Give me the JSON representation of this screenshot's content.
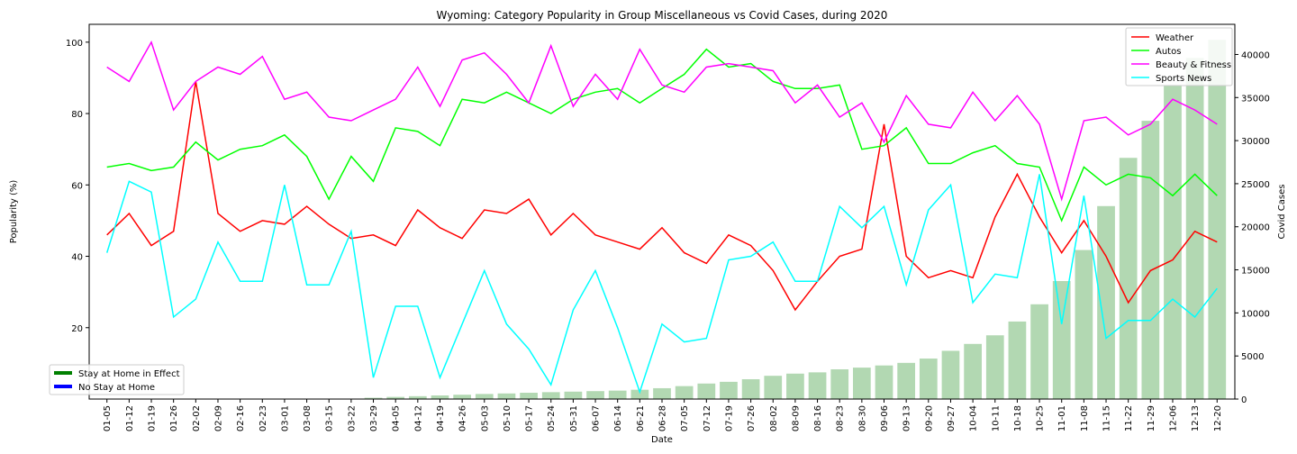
{
  "chart_data": {
    "type": "line",
    "title": "Wyoming: Category Popularity in Group Miscellaneous vs Covid Cases, during 2020",
    "xlabel": "Date",
    "ylabel": "Popularity (%)",
    "y2label": "Covid Cases",
    "ylim": [
      0,
      105
    ],
    "y2lim": [
      0,
      43500
    ],
    "yticks": [
      "20",
      "40",
      "60",
      "80",
      "100"
    ],
    "y2ticks": [
      "0",
      "5000",
      "10000",
      "15000",
      "20000",
      "25000",
      "30000",
      "35000",
      "40000"
    ],
    "categories": [
      "01-05",
      "01-12",
      "01-19",
      "01-26",
      "02-02",
      "02-09",
      "02-16",
      "02-23",
      "03-01",
      "03-08",
      "03-15",
      "03-22",
      "03-29",
      "04-05",
      "04-12",
      "04-19",
      "04-26",
      "05-03",
      "05-10",
      "05-17",
      "05-24",
      "05-31",
      "06-07",
      "06-14",
      "06-21",
      "06-28",
      "07-05",
      "07-12",
      "07-19",
      "07-26",
      "08-02",
      "08-09",
      "08-16",
      "08-23",
      "08-30",
      "09-06",
      "09-13",
      "09-20",
      "09-27",
      "10-04",
      "10-11",
      "10-18",
      "10-25",
      "11-01",
      "11-08",
      "11-15",
      "11-22",
      "11-29",
      "12-06",
      "12-13",
      "12-20"
    ],
    "series": [
      {
        "name": "Weather",
        "color": "#ff0000",
        "values": [
          46,
          52,
          43,
          47,
          89,
          52,
          47,
          50,
          49,
          54,
          49,
          45,
          46,
          43,
          53,
          48,
          45,
          53,
          52,
          56,
          46,
          52,
          46,
          44,
          42,
          48,
          41,
          38,
          46,
          43,
          36,
          25,
          33,
          40,
          42,
          77,
          40,
          34,
          36,
          34,
          51,
          63,
          51,
          41,
          50,
          40,
          27,
          36,
          39,
          47,
          44
        ]
      },
      {
        "name": "Autos",
        "color": "#00ff00",
        "values": [
          65,
          66,
          64,
          65,
          72,
          67,
          70,
          71,
          74,
          68,
          56,
          68,
          61,
          76,
          75,
          71,
          84,
          83,
          86,
          83,
          80,
          84,
          86,
          87,
          83,
          87,
          91,
          98,
          93,
          94,
          89,
          87,
          87,
          88,
          70,
          71,
          76,
          66,
          66,
          69,
          71,
          66,
          65,
          50,
          65,
          60,
          63,
          62,
          57,
          63,
          57
        ]
      },
      {
        "name": "Beauty & Fitness",
        "color": "#ff00ff",
        "values": [
          93,
          89,
          100,
          81,
          89,
          93,
          91,
          96,
          84,
          86,
          79,
          78,
          81,
          84,
          93,
          82,
          95,
          97,
          91,
          83,
          99,
          82,
          91,
          84,
          98,
          88,
          86,
          93,
          94,
          93,
          92,
          83,
          88,
          79,
          83,
          72,
          85,
          77,
          76,
          86,
          78,
          85,
          77,
          56,
          78,
          79,
          74,
          77,
          84,
          81,
          77
        ]
      },
      {
        "name": "Sports News",
        "color": "#00ffff",
        "values": [
          41,
          61,
          58,
          23,
          28,
          44,
          33,
          33,
          60,
          32,
          32,
          47,
          6,
          26,
          26,
          6,
          21,
          36,
          21,
          14,
          4,
          25,
          36,
          20,
          2,
          21,
          16,
          17,
          39,
          40,
          44,
          33,
          33,
          54,
          48,
          54,
          32,
          53,
          60,
          27,
          35,
          34,
          63,
          21,
          57,
          17,
          22,
          22,
          28,
          23,
          31
        ]
      }
    ],
    "bars": {
      "name": "Covid Cases",
      "color": "#b2d8b2",
      "values": [
        0,
        0,
        0,
        0,
        0,
        0,
        0,
        0,
        0,
        0,
        20,
        50,
        150,
        250,
        330,
        420,
        500,
        590,
        650,
        730,
        800,
        860,
        920,
        980,
        1080,
        1260,
        1500,
        1800,
        2000,
        2300,
        2700,
        2950,
        3100,
        3450,
        3650,
        3900,
        4200,
        4700,
        5600,
        6400,
        7400,
        9000,
        11000,
        13700,
        17300,
        22400,
        28000,
        32300,
        36400,
        39600,
        41700
      ]
    },
    "legend": {
      "placement": "top-right",
      "stay_home_placement": "lower-left",
      "stay_home": [
        {
          "label": "Stay at Home in Effect",
          "color": "#008000"
        },
        {
          "label": "No Stay at Home",
          "color": "#0000ff"
        }
      ]
    }
  }
}
